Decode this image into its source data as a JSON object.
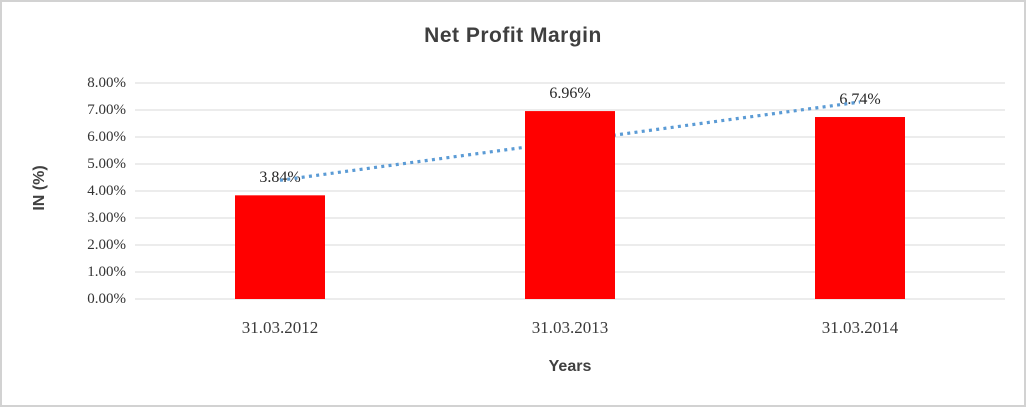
{
  "chart_data": {
    "type": "bar",
    "title": "Net Profit Margin",
    "xlabel": "Years",
    "ylabel": "IN (%)",
    "categories": [
      "31.03.2012",
      "31.03.2013",
      "31.03.2014"
    ],
    "values": [
      3.84,
      6.96,
      6.74
    ],
    "data_labels": [
      "3.84%",
      "6.96%",
      "6.74%"
    ],
    "ytick_labels": [
      "0.00%",
      "1.00%",
      "2.00%",
      "3.00%",
      "4.00%",
      "5.00%",
      "6.00%",
      "7.00%",
      "8.00%"
    ],
    "ylim": [
      0,
      8
    ],
    "grid": true,
    "legend_position": "none",
    "bar_color": "#ff0000",
    "gridline_color": "#d9d9d9",
    "trendline": {
      "type": "linear",
      "style": "dotted",
      "color": "#5b9bd5",
      "start_value": 4.4,
      "end_value": 7.3
    }
  }
}
